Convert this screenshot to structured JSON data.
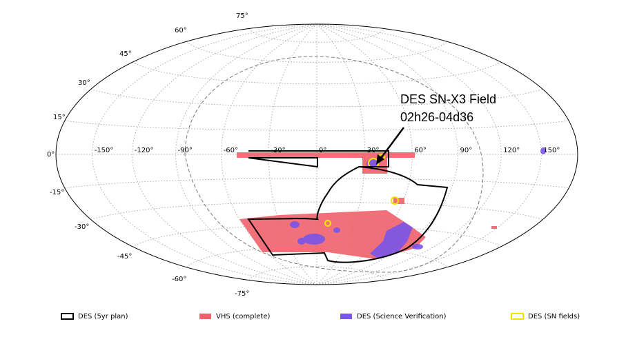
{
  "map": {
    "latitude_labels": [
      "75°",
      "60°",
      "45°",
      "30°",
      "15°",
      "0°",
      "-15°",
      "-30°",
      "-45°",
      "-60°",
      "-75°"
    ],
    "longitude_labels": [
      "-150°",
      "-120°",
      "-90°",
      "-60°",
      "-30°",
      "0°",
      "30°",
      "60°",
      "90°",
      "120°",
      "150°"
    ],
    "annotation": {
      "line1": "DES SN-X3 Field",
      "line2": "02h26-04d36"
    },
    "legend": [
      "DES (5yr plan)",
      "VHS (complete)",
      "DES (Science Verification)",
      "DES (SN fields)"
    ]
  }
}
